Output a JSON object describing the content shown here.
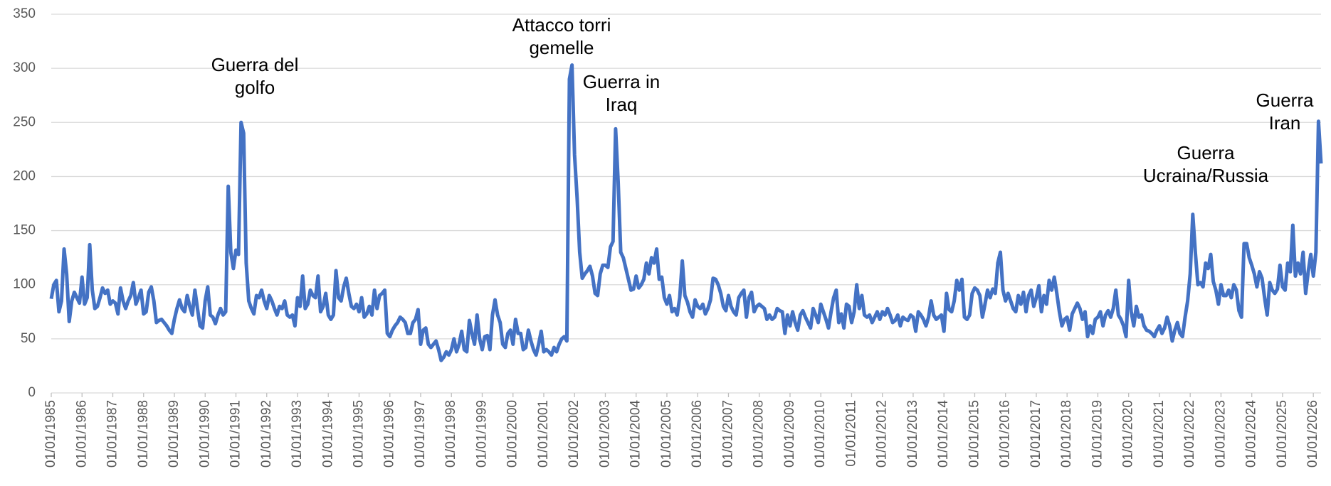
{
  "chart_data": {
    "type": "line",
    "color": "#4472c4",
    "grid": true,
    "ylim": [
      0,
      350
    ],
    "yticks": [
      0,
      50,
      100,
      150,
      200,
      250,
      300,
      350
    ],
    "xlim": [
      "01/01/1985",
      "01/04/2026"
    ],
    "xticks": [
      "01/01/1985",
      "01/01/1986",
      "01/01/1987",
      "01/01/1988",
      "01/01/1989",
      "01/01/1990",
      "01/01/1991",
      "01/01/1992",
      "01/01/1993",
      "01/01/1994",
      "01/01/1995",
      "01/01/1996",
      "01/01/1997",
      "01/01/1998",
      "01/01/1999",
      "01/01/2000",
      "01/01/2001",
      "01/01/2002",
      "01/01/2003",
      "01/01/2004",
      "01/01/2005",
      "01/01/2006",
      "01/01/2007",
      "01/01/2008",
      "01/01/2009",
      "01/01/2010",
      "01/01/2011",
      "01/01/2012",
      "01/01/2013",
      "01/01/2014",
      "01/01/2015",
      "01/01/2016",
      "01/01/2017",
      "01/01/2018",
      "01/01/2019",
      "01/01/2020",
      "01/01/2021",
      "01/01/2022",
      "01/01/2023",
      "01/01/2024",
      "01/01/2025",
      "01/01/2026"
    ],
    "annotations": [
      [
        "Guerra del",
        "golfo"
      ],
      [
        "Attacco torri",
        "gemelle"
      ],
      [
        "Guerra in",
        "Iraq"
      ],
      [
        "Guerra",
        "Ucraina/Russia"
      ],
      [
        "Guerra",
        "Iran"
      ]
    ],
    "x": [
      "01/01/1985",
      "01/02/1985",
      "01/03/1985",
      "01/04/1985",
      "01/05/1985",
      "01/06/1985",
      "01/07/1985",
      "01/08/1985",
      "01/09/1985",
      "01/10/1985",
      "01/11/1985",
      "01/12/1985",
      "01/01/1986",
      "01/02/1986",
      "01/03/1986",
      "01/04/1986",
      "01/05/1986",
      "01/06/1986",
      "01/07/1986",
      "01/08/1986",
      "01/09/1986",
      "01/10/1986",
      "01/11/1986",
      "01/12/1986",
      "01/01/1987",
      "01/02/1987",
      "01/03/1987",
      "01/04/1987",
      "01/05/1987",
      "01/06/1987",
      "01/07/1987",
      "01/08/1987",
      "01/09/1987",
      "01/10/1987",
      "01/11/1987",
      "01/12/1987",
      "01/01/1988",
      "01/02/1988",
      "01/03/1988",
      "01/04/1988",
      "01/05/1988",
      "01/06/1988",
      "01/07/1988",
      "01/08/1988",
      "01/09/1988",
      "01/10/1988",
      "01/11/1988",
      "01/12/1988",
      "01/01/1989",
      "01/02/1989",
      "01/03/1989",
      "01/04/1989",
      "01/05/1989",
      "01/06/1989",
      "01/07/1989",
      "01/08/1989",
      "01/09/1989",
      "01/10/1989",
      "01/11/1989",
      "01/12/1989",
      "01/01/1990",
      "01/02/1990",
      "01/03/1990",
      "01/04/1990",
      "01/05/1990",
      "01/06/1990",
      "01/07/1990",
      "01/08/1990",
      "01/09/1990",
      "01/10/1990",
      "01/11/1990",
      "01/12/1990",
      "01/01/1991",
      "01/02/1991",
      "01/03/1991",
      "01/04/1991",
      "01/05/1991",
      "01/06/1991",
      "01/07/1991",
      "01/08/1991",
      "01/09/1991",
      "01/10/1991",
      "01/11/1991",
      "01/12/1991",
      "01/01/1992",
      "01/02/1992",
      "01/03/1992",
      "01/04/1992",
      "01/05/1992",
      "01/06/1992",
      "01/07/1992",
      "01/08/1992",
      "01/09/1992",
      "01/10/1992",
      "01/11/1992",
      "01/12/1992",
      "01/01/1993",
      "01/02/1993",
      "01/03/1993",
      "01/04/1993",
      "01/05/1993",
      "01/06/1993",
      "01/07/1993",
      "01/08/1993",
      "01/09/1993",
      "01/10/1993",
      "01/11/1993",
      "01/12/1993",
      "01/01/1994",
      "01/02/1994",
      "01/03/1994",
      "01/04/1994",
      "01/05/1994",
      "01/06/1994",
      "01/07/1994",
      "01/08/1994",
      "01/09/1994",
      "01/10/1994",
      "01/11/1994",
      "01/12/1994",
      "01/01/1995",
      "01/02/1995",
      "01/03/1995",
      "01/04/1995",
      "01/05/1995",
      "01/06/1995",
      "01/07/1995",
      "01/08/1995",
      "01/09/1995",
      "01/10/1995",
      "01/11/1995",
      "01/12/1995",
      "01/01/1996",
      "01/02/1996",
      "01/03/1996",
      "01/04/1996",
      "01/05/1996",
      "01/06/1996",
      "01/07/1996",
      "01/08/1996",
      "01/09/1996",
      "01/10/1996",
      "01/11/1996",
      "01/12/1996",
      "01/01/1997",
      "01/02/1997",
      "01/03/1997",
      "01/04/1997",
      "01/05/1997",
      "01/06/1997",
      "01/07/1997",
      "01/08/1997",
      "01/09/1997",
      "01/10/1997",
      "01/11/1997",
      "01/12/1997",
      "01/01/1998",
      "01/02/1998",
      "01/03/1998",
      "01/04/1998",
      "01/05/1998",
      "01/06/1998",
      "01/07/1998",
      "01/08/1998",
      "01/09/1998",
      "01/10/1998",
      "01/11/1998",
      "01/12/1998",
      "01/01/1999",
      "01/02/1999",
      "01/03/1999",
      "01/04/1999",
      "01/05/1999",
      "01/06/1999",
      "01/07/1999",
      "01/08/1999",
      "01/09/1999",
      "01/10/1999",
      "01/11/1999",
      "01/12/1999",
      "01/01/2000",
      "01/02/2000",
      "01/03/2000",
      "01/04/2000",
      "01/05/2000",
      "01/06/2000",
      "01/07/2000",
      "01/08/2000",
      "01/09/2000",
      "01/10/2000",
      "01/11/2000",
      "01/12/2000",
      "01/01/2001",
      "01/02/2001",
      "01/03/2001",
      "01/04/2001",
      "01/05/2001",
      "01/06/2001",
      "01/07/2001",
      "01/08/2001",
      "01/09/2001",
      "01/10/2001",
      "01/11/2001",
      "01/12/2001",
      "01/01/2002",
      "01/02/2002",
      "01/03/2002",
      "01/04/2002",
      "01/05/2002",
      "01/06/2002",
      "01/07/2002",
      "01/08/2002",
      "01/09/2002",
      "01/10/2002",
      "01/11/2002",
      "01/12/2002",
      "01/01/2003",
      "01/02/2003",
      "01/03/2003",
      "01/04/2003",
      "01/05/2003",
      "01/06/2003",
      "01/07/2003",
      "01/08/2003",
      "01/09/2003",
      "01/10/2003",
      "01/11/2003",
      "01/12/2003",
      "01/01/2004",
      "01/02/2004",
      "01/03/2004",
      "01/04/2004",
      "01/05/2004",
      "01/06/2004",
      "01/07/2004",
      "01/08/2004",
      "01/09/2004",
      "01/10/2004",
      "01/11/2004",
      "01/12/2004",
      "01/01/2005",
      "01/02/2005",
      "01/03/2005",
      "01/04/2005",
      "01/05/2005",
      "01/06/2005",
      "01/07/2005",
      "01/08/2005",
      "01/09/2005",
      "01/10/2005",
      "01/11/2005",
      "01/12/2005",
      "01/01/2006",
      "01/02/2006",
      "01/03/2006",
      "01/04/2006",
      "01/05/2006",
      "01/06/2006",
      "01/07/2006",
      "01/08/2006",
      "01/09/2006",
      "01/10/2006",
      "01/11/2006",
      "01/12/2006",
      "01/01/2007",
      "01/02/2007",
      "01/03/2007",
      "01/04/2007",
      "01/05/2007",
      "01/06/2007",
      "01/07/2007",
      "01/08/2007",
      "01/09/2007",
      "01/10/2007",
      "01/11/2007",
      "01/12/2007",
      "01/01/2008",
      "01/02/2008",
      "01/03/2008",
      "01/04/2008",
      "01/05/2008",
      "01/06/2008",
      "01/07/2008",
      "01/08/2008",
      "01/09/2008",
      "01/10/2008",
      "01/11/2008",
      "01/12/2008",
      "01/01/2009",
      "01/02/2009",
      "01/03/2009",
      "01/04/2009",
      "01/05/2009",
      "01/06/2009",
      "01/07/2009",
      "01/08/2009",
      "01/09/2009",
      "01/10/2009",
      "01/11/2009",
      "01/12/2009",
      "01/01/2010",
      "01/02/2010",
      "01/03/2010",
      "01/04/2010",
      "01/05/2010",
      "01/06/2010",
      "01/07/2010",
      "01/08/2010",
      "01/09/2010",
      "01/10/2010",
      "01/11/2010",
      "01/12/2010",
      "01/01/2011",
      "01/02/2011",
      "01/03/2011",
      "01/04/2011",
      "01/05/2011",
      "01/06/2011",
      "01/07/2011",
      "01/08/2011",
      "01/09/2011",
      "01/10/2011",
      "01/11/2011",
      "01/12/2011",
      "01/01/2012",
      "01/02/2012",
      "01/03/2012",
      "01/04/2012",
      "01/05/2012",
      "01/06/2012",
      "01/07/2012",
      "01/08/2012",
      "01/09/2012",
      "01/10/2012",
      "01/11/2012",
      "01/12/2012",
      "01/01/2013",
      "01/02/2013",
      "01/03/2013",
      "01/04/2013",
      "01/05/2013",
      "01/06/2013",
      "01/07/2013",
      "01/08/2013",
      "01/09/2013",
      "01/10/2013",
      "01/11/2013",
      "01/12/2013",
      "01/01/2014",
      "01/02/2014",
      "01/03/2014",
      "01/04/2014",
      "01/05/2014",
      "01/06/2014",
      "01/07/2014",
      "01/08/2014",
      "01/09/2014",
      "01/10/2014",
      "01/11/2014",
      "01/12/2014",
      "01/01/2015",
      "01/02/2015",
      "01/03/2015",
      "01/04/2015",
      "01/05/2015",
      "01/06/2015",
      "01/07/2015",
      "01/08/2015",
      "01/09/2015",
      "01/10/2015",
      "01/11/2015",
      "01/12/2015",
      "01/01/2016",
      "01/02/2016",
      "01/03/2016",
      "01/04/2016",
      "01/05/2016",
      "01/06/2016",
      "01/07/2016",
      "01/08/2016",
      "01/09/2016",
      "01/10/2016",
      "01/11/2016",
      "01/12/2016",
      "01/01/2017",
      "01/02/2017",
      "01/03/2017",
      "01/04/2017",
      "01/05/2017",
      "01/06/2017",
      "01/07/2017",
      "01/08/2017",
      "01/09/2017",
      "01/10/2017",
      "01/11/2017",
      "01/12/2017",
      "01/01/2018",
      "01/02/2018",
      "01/03/2018",
      "01/04/2018",
      "01/05/2018",
      "01/06/2018",
      "01/07/2018",
      "01/08/2018",
      "01/09/2018",
      "01/10/2018",
      "01/11/2018",
      "01/12/2018",
      "01/01/2019",
      "01/02/2019",
      "01/03/2019",
      "01/04/2019",
      "01/05/2019",
      "01/06/2019",
      "01/07/2019",
      "01/08/2019",
      "01/09/2019",
      "01/10/2019",
      "01/11/2019",
      "01/12/2019",
      "01/01/2020",
      "01/02/2020",
      "01/03/2020",
      "01/04/2020",
      "01/05/2020",
      "01/06/2020",
      "01/07/2020",
      "01/08/2020",
      "01/09/2020",
      "01/10/2020",
      "01/11/2020",
      "01/12/2020",
      "01/01/2021",
      "01/02/2021",
      "01/03/2021",
      "01/04/2021",
      "01/05/2021",
      "01/06/2021",
      "01/07/2021",
      "01/08/2021",
      "01/09/2021",
      "01/10/2021",
      "01/11/2021",
      "01/12/2021",
      "01/01/2022",
      "01/02/2022",
      "01/03/2022",
      "01/04/2022",
      "01/05/2022",
      "01/06/2022",
      "01/07/2022",
      "01/08/2022",
      "01/09/2022",
      "01/10/2022",
      "01/11/2022",
      "01/12/2022",
      "01/01/2023",
      "01/02/2023",
      "01/03/2023",
      "01/04/2023",
      "01/05/2023",
      "01/06/2023",
      "01/07/2023",
      "01/08/2023",
      "01/09/2023",
      "01/10/2023",
      "01/11/2023",
      "01/12/2023",
      "01/01/2024",
      "01/02/2024",
      "01/03/2024",
      "01/04/2024",
      "01/05/2024",
      "01/06/2024",
      "01/07/2024",
      "01/08/2024",
      "01/09/2024",
      "01/10/2024",
      "01/11/2024",
      "01/12/2024",
      "01/01/2025",
      "01/02/2025",
      "01/03/2025",
      "01/04/2025",
      "01/05/2025",
      "01/06/2025",
      "01/07/2025",
      "01/08/2025",
      "01/09/2025",
      "01/10/2025",
      "01/11/2025",
      "01/12/2025",
      "01/01/2026",
      "01/02/2026",
      "01/03/2026",
      "01/04/2026"
    ],
    "values": [
      87,
      100,
      104,
      75,
      85,
      133,
      110,
      66,
      85,
      93,
      88,
      83,
      107,
      82,
      88,
      137,
      95,
      78,
      80,
      88,
      97,
      92,
      95,
      82,
      85,
      83,
      73,
      97,
      85,
      78,
      85,
      90,
      102,
      82,
      88,
      95,
      73,
      75,
      93,
      98,
      85,
      65,
      67,
      68,
      65,
      62,
      58,
      55,
      68,
      78,
      86,
      78,
      75,
      90,
      80,
      72,
      95,
      78,
      62,
      60,
      85,
      98,
      72,
      70,
      64,
      72,
      78,
      72,
      75,
      191,
      130,
      115,
      132,
      128,
      250,
      240,
      120,
      85,
      78,
      73,
      90,
      88,
      95,
      85,
      78,
      90,
      85,
      78,
      72,
      80,
      78,
      85,
      72,
      70,
      72,
      62,
      88,
      80,
      108,
      78,
      82,
      95,
      90,
      88,
      108,
      75,
      80,
      92,
      72,
      68,
      72,
      113,
      88,
      85,
      98,
      106,
      92,
      80,
      78,
      82,
      75,
      88,
      70,
      73,
      80,
      72,
      95,
      78,
      90,
      92,
      95,
      55,
      52,
      58,
      62,
      65,
      70,
      68,
      65,
      55,
      55,
      65,
      68,
      77,
      45,
      58,
      60,
      45,
      42,
      45,
      48,
      40,
      30,
      33,
      38,
      35,
      40,
      50,
      38,
      45,
      57,
      40,
      38,
      67,
      55,
      45,
      72,
      50,
      40,
      52,
      53,
      40,
      72,
      86,
      72,
      65,
      45,
      42,
      55,
      58,
      45,
      68,
      55,
      55,
      40,
      42,
      58,
      48,
      40,
      35,
      45,
      57,
      38,
      40,
      38,
      35,
      42,
      38,
      45,
      50,
      52,
      48,
      290,
      303,
      220,
      180,
      130,
      106,
      110,
      113,
      117,
      108,
      92,
      90,
      110,
      118,
      118,
      116,
      135,
      140,
      244,
      195,
      130,
      125,
      115,
      105,
      95,
      96,
      108,
      97,
      100,
      105,
      120,
      110,
      125,
      120,
      133,
      105,
      107,
      88,
      82,
      90,
      75,
      78,
      72,
      88,
      122,
      90,
      84,
      75,
      70,
      86,
      80,
      78,
      82,
      73,
      78,
      86,
      106,
      105,
      100,
      92,
      80,
      76,
      90,
      80,
      75,
      72,
      88,
      92,
      95,
      70,
      88,
      93,
      75,
      80,
      82,
      80,
      78,
      68,
      72,
      68,
      70,
      78,
      76,
      75,
      55,
      72,
      62,
      75,
      65,
      58,
      72,
      76,
      70,
      65,
      60,
      78,
      72,
      65,
      82,
      75,
      68,
      60,
      75,
      88,
      95,
      65,
      73,
      60,
      82,
      80,
      65,
      75,
      100,
      78,
      90,
      72,
      70,
      72,
      65,
      70,
      75,
      68,
      75,
      72,
      78,
      72,
      65,
      67,
      72,
      62,
      70,
      68,
      67,
      72,
      70,
      57,
      75,
      72,
      68,
      62,
      70,
      85,
      72,
      68,
      70,
      72,
      57,
      92,
      77,
      75,
      85,
      104,
      95,
      105,
      70,
      68,
      72,
      92,
      97,
      95,
      90,
      70,
      82,
      95,
      88,
      96,
      92,
      120,
      130,
      95,
      85,
      92,
      85,
      78,
      75,
      90,
      82,
      93,
      75,
      90,
      95,
      80,
      88,
      99,
      75,
      90,
      82,
      104,
      95,
      107,
      92,
      75,
      62,
      68,
      70,
      58,
      73,
      78,
      83,
      78,
      68,
      75,
      52,
      62,
      55,
      68,
      70,
      75,
      62,
      72,
      76,
      70,
      78,
      95,
      72,
      68,
      62,
      52,
      104,
      75,
      62,
      80,
      70,
      72,
      62,
      58,
      57,
      55,
      52,
      58,
      62,
      55,
      60,
      70,
      62,
      48,
      58,
      65,
      55,
      52,
      70,
      85,
      110,
      165,
      130,
      100,
      102,
      98,
      120,
      115,
      128,
      103,
      95,
      82,
      100,
      90,
      90,
      95,
      88,
      100,
      95,
      76,
      70,
      138,
      138,
      125,
      118,
      110,
      98,
      112,
      106,
      88,
      72,
      102,
      95,
      92,
      96,
      118,
      98,
      95,
      120,
      112,
      155,
      108,
      120,
      110,
      130,
      92,
      112,
      128,
      108,
      130,
      251,
      212
    ]
  }
}
